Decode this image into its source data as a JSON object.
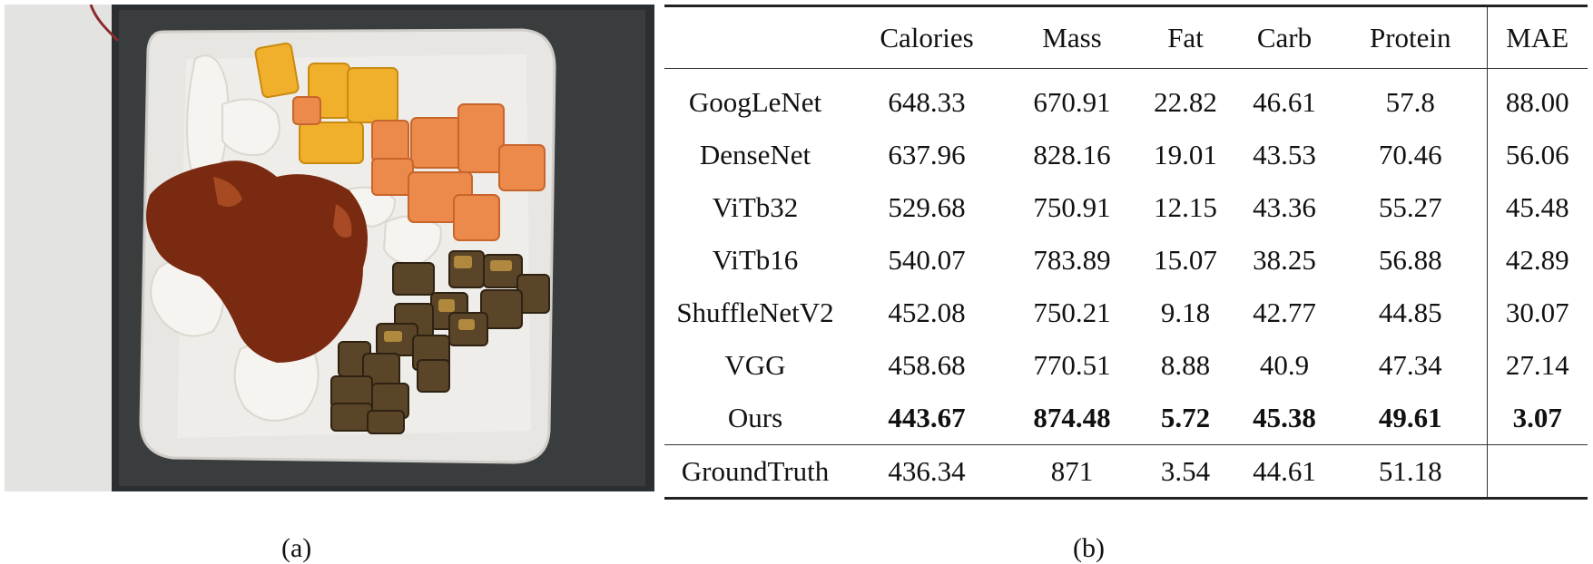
{
  "captions": {
    "a": "(a)",
    "b": "(b)"
  },
  "table": {
    "columns": [
      "",
      "Calories",
      "Mass",
      "Fat",
      "Carb",
      "Protein",
      "MAE"
    ],
    "rows": [
      {
        "method": "GoogLeNet",
        "values": [
          "648.33",
          "670.91",
          "22.82",
          "46.61",
          "57.8",
          "88.00"
        ]
      },
      {
        "method": "DenseNet",
        "values": [
          "637.96",
          "828.16",
          "19.01",
          "43.53",
          "70.46",
          "56.06"
        ]
      },
      {
        "method": "ViTb32",
        "values": [
          "529.68",
          "750.91",
          "12.15",
          "43.36",
          "55.27",
          "45.48"
        ]
      },
      {
        "method": "ViTb16",
        "values": [
          "540.07",
          "783.89",
          "15.07",
          "38.25",
          "56.88",
          "42.89"
        ]
      },
      {
        "method": "ShuffleNetV2",
        "values": [
          "452.08",
          "750.21",
          "9.18",
          "42.77",
          "44.85",
          "30.07"
        ]
      },
      {
        "method": "VGG",
        "values": [
          "458.68",
          "770.51",
          "8.88",
          "40.9",
          "47.34",
          "27.14"
        ]
      },
      {
        "method": "Ours",
        "values": [
          "443.67",
          "874.48",
          "5.72",
          "45.38",
          "49.61",
          "3.07"
        ]
      }
    ],
    "ground_truth": {
      "method": "GroundTruth",
      "values": [
        "436.34",
        "871",
        "3.54",
        "44.61",
        "51.18",
        ""
      ]
    }
  },
  "colors": {
    "plate": "#e9e6e1",
    "tray": "#2a2c2e",
    "sauce": "#7a2a10",
    "melon": "#e9884a",
    "pineapple": "#f3b531",
    "eggplant": "#4a3a26",
    "egg_white": "#f4f2ee"
  }
}
